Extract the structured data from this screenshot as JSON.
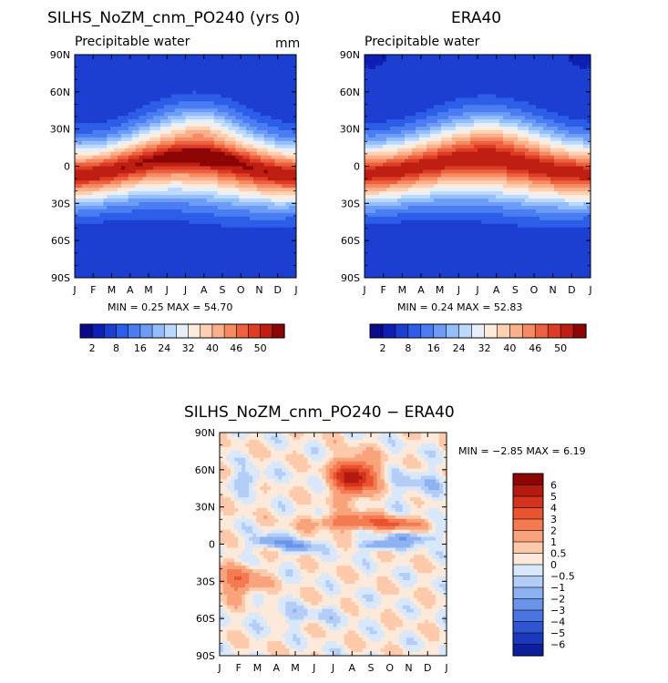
{
  "chart_data": [
    {
      "type": "contour",
      "title": "SILHS_NoZM_cnm_PO240 (yrs 0)",
      "subtitle_left": "Precipitable water",
      "units": "mm",
      "x_ticks": [
        "J",
        "F",
        "M",
        "A",
        "M",
        "J",
        "J",
        "A",
        "S",
        "O",
        "N",
        "D",
        "J"
      ],
      "y_ticks": [
        "90N",
        "60N",
        "30N",
        "0",
        "30S",
        "60S",
        "90S"
      ],
      "y_values": [
        90,
        60,
        30,
        0,
        -30,
        -60,
        -90
      ],
      "stats": "MIN =    0.25  MAX =   54.70",
      "min": 0.25,
      "max": 54.7,
      "field": "model",
      "colorbar": {
        "labels": [
          "2",
          "8",
          "16",
          "24",
          "32",
          "40",
          "46",
          "50"
        ],
        "colors": [
          "#0a0a8a",
          "#0d20b3",
          "#1d3fd1",
          "#2d5ee8",
          "#4a7df2",
          "#6d9cf7",
          "#93bdfb",
          "#bcd8fc",
          "#e6f0fb",
          "#fdebdc",
          "#fdd0b4",
          "#fbb08c",
          "#f68a62",
          "#ec6240",
          "#de3d25",
          "#bf1e12",
          "#8c0606"
        ]
      }
    },
    {
      "type": "contour",
      "title": "ERA40",
      "subtitle_left": "Precipitable water",
      "x_ticks": [
        "J",
        "F",
        "M",
        "A",
        "M",
        "J",
        "J",
        "A",
        "S",
        "O",
        "N",
        "D",
        "J"
      ],
      "y_ticks": [
        "90N",
        "60N",
        "30N",
        "0",
        "30S",
        "60S",
        "90S"
      ],
      "y_values": [
        90,
        60,
        30,
        0,
        -30,
        -60,
        -90
      ],
      "stats": "MIN =    0.24  MAX =   52.83",
      "min": 0.24,
      "max": 52.83,
      "field": "obs",
      "colorbar": {
        "labels": [
          "2",
          "8",
          "16",
          "24",
          "32",
          "40",
          "46",
          "50"
        ],
        "colors": [
          "#0a0a8a",
          "#0d20b3",
          "#1d3fd1",
          "#2d5ee8",
          "#4a7df2",
          "#6d9cf7",
          "#93bdfb",
          "#bcd8fc",
          "#e6f0fb",
          "#fdebdc",
          "#fdd0b4",
          "#fbb08c",
          "#f68a62",
          "#ec6240",
          "#de3d25",
          "#bf1e12",
          "#8c0606"
        ]
      }
    },
    {
      "type": "contour",
      "title": "SILHS_NoZM_cnm_PO240 − ERA40",
      "x_ticks": [
        "J",
        "F",
        "M",
        "A",
        "M",
        "J",
        "J",
        "A",
        "S",
        "O",
        "N",
        "D",
        "J"
      ],
      "y_ticks": [
        "90N",
        "60N",
        "30N",
        "0",
        "30S",
        "60S",
        "90S"
      ],
      "y_values": [
        90,
        60,
        30,
        0,
        -30,
        -60,
        -90
      ],
      "stats": "MIN =    −2.85  MAX =    6.19",
      "min": -2.85,
      "max": 6.19,
      "field": "diff",
      "colorbar": {
        "labels": [
          "6",
          "5",
          "4",
          "3",
          "2",
          "1",
          "0.5",
          "0",
          "−0.5",
          "−1",
          "−2",
          "−3",
          "−4",
          "−5",
          "−6"
        ],
        "colors": [
          "#8c0606",
          "#b51a10",
          "#d4331d",
          "#e9532e",
          "#f47a52",
          "#f9a37d",
          "#fcc9ab",
          "#fde9d9",
          "#d8e7fa",
          "#b3cdf6",
          "#8db1f1",
          "#6a93ea",
          "#4a75e0",
          "#2e56d2",
          "#1c38be",
          "#0d1f9c"
        ]
      }
    }
  ]
}
